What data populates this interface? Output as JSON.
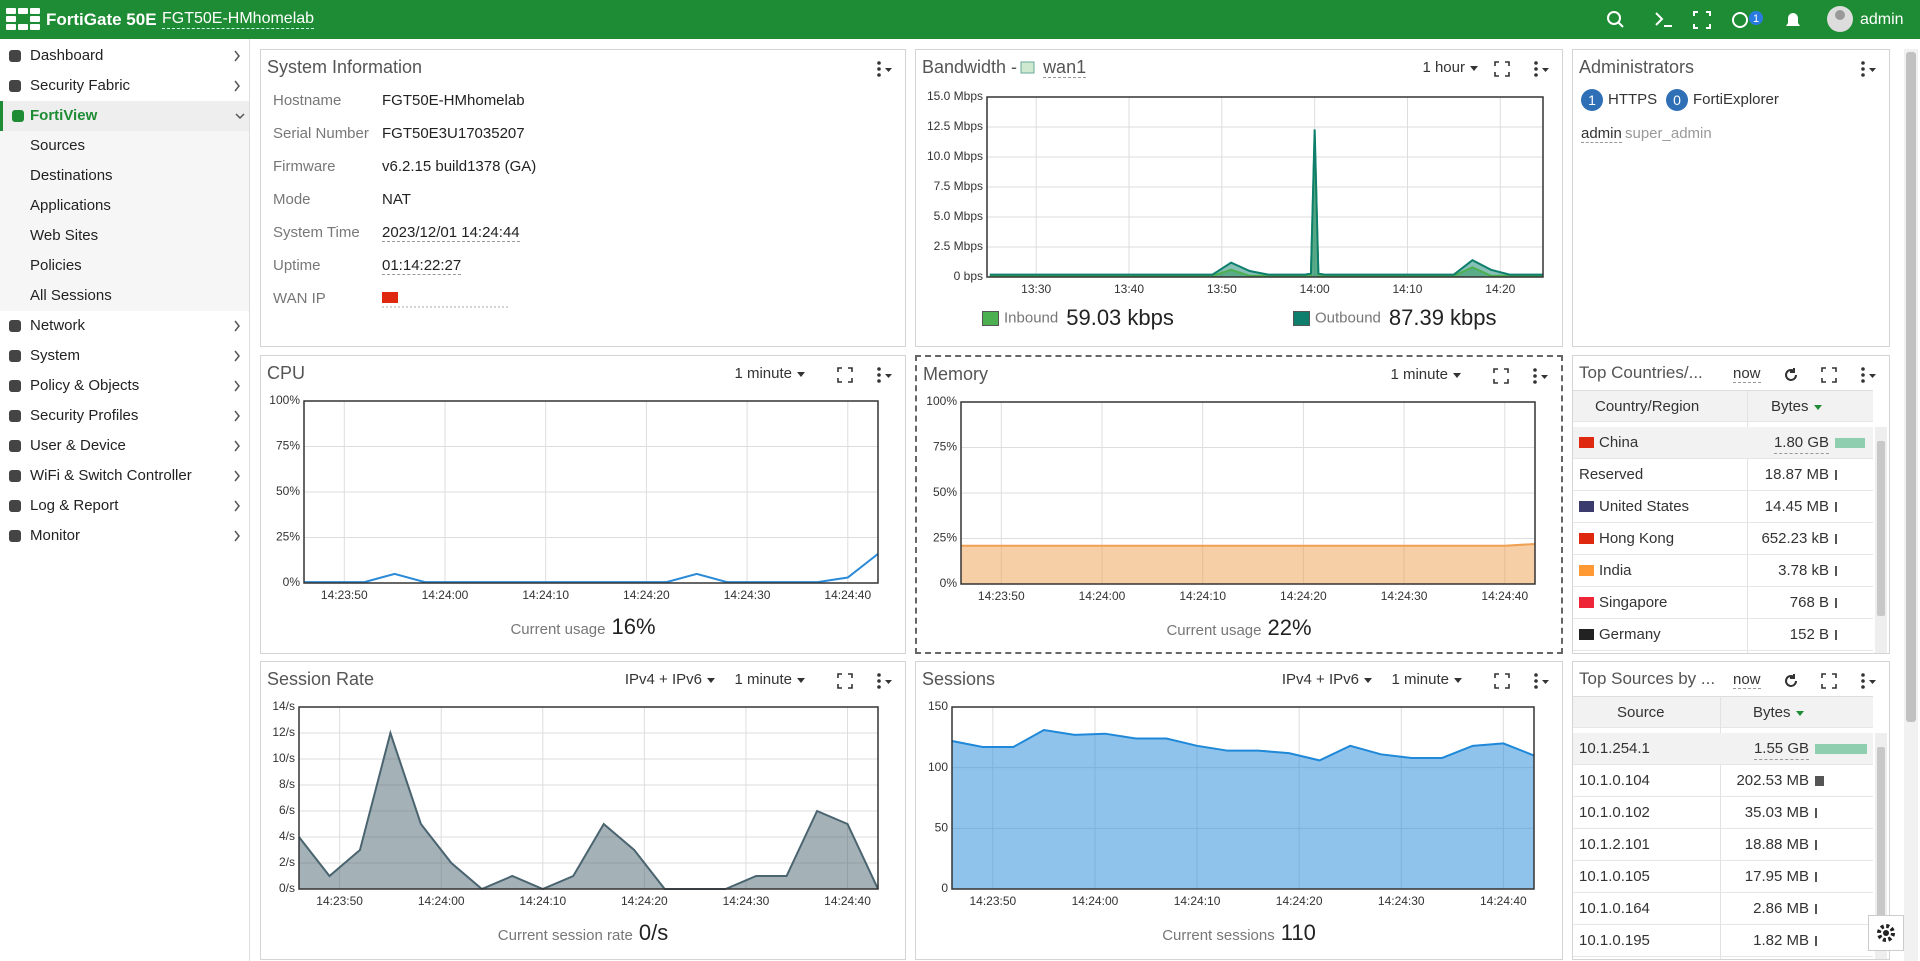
{
  "header": {
    "brand": "FortiGate 50E",
    "hostname": "FGT50E-HMhomelab",
    "help_count": 1,
    "user": "admin"
  },
  "sidebar": {
    "items": [
      {
        "label": "Dashboard"
      },
      {
        "label": "Security Fabric"
      },
      {
        "label": "FortiView",
        "active": true,
        "children": [
          "Sources",
          "Destinations",
          "Applications",
          "Web Sites",
          "Policies",
          "All Sessions"
        ]
      },
      {
        "label": "Network"
      },
      {
        "label": "System"
      },
      {
        "label": "Policy & Objects"
      },
      {
        "label": "Security Profiles"
      },
      {
        "label": "User & Device"
      },
      {
        "label": "WiFi & Switch Controller"
      },
      {
        "label": "Log & Report"
      },
      {
        "label": "Monitor"
      }
    ]
  },
  "system_information": {
    "title": "System Information",
    "rows": [
      {
        "label": "Hostname",
        "value": "FGT50E-HMhomelab"
      },
      {
        "label": "Serial Number",
        "value": "FGT50E3U17035207"
      },
      {
        "label": "Firmware",
        "value": "v6.2.15 build1378 (GA)"
      },
      {
        "label": "Mode",
        "value": "NAT"
      },
      {
        "label": "System Time",
        "value": "2023/12/01 14:24:44"
      },
      {
        "label": "Uptime",
        "value": "01:14:22:27"
      },
      {
        "label": "WAN IP"
      }
    ]
  },
  "bandwidth": {
    "title": "Bandwidth -",
    "interface": "wan1",
    "period": "1 hour",
    "chart_data": {
      "type": "area",
      "x": [
        805,
        807,
        809,
        811,
        813,
        815,
        817,
        819,
        821,
        823,
        825,
        827,
        829,
        831,
        833,
        835,
        837,
        839,
        839.6,
        840,
        840.4,
        841,
        843,
        845,
        847,
        849,
        851,
        853,
        855,
        857,
        859,
        861,
        863,
        864.6
      ],
      "series": [
        {
          "name": "Inbound",
          "color": "#4caf50",
          "current": "59.03 kbps",
          "values": [
            0.1,
            0.1,
            0.1,
            0.1,
            0.1,
            0.1,
            0.1,
            0.1,
            0.1,
            0.1,
            0.1,
            0.1,
            0.1,
            0.6,
            0.1,
            0.1,
            0.1,
            0.1,
            0.1,
            11.8,
            0.1,
            0.1,
            0.1,
            0.1,
            0.1,
            0.1,
            0.1,
            0.1,
            0.1,
            0.8,
            0.1,
            0.1,
            0.1,
            0.1
          ]
        },
        {
          "name": "Outbound",
          "color": "#0e7f6d",
          "current": "87.39 kbps",
          "values": [
            0.2,
            0.2,
            0.2,
            0.2,
            0.2,
            0.2,
            0.2,
            0.2,
            0.2,
            0.2,
            0.2,
            0.2,
            0.2,
            1.2,
            0.5,
            0.2,
            0.2,
            0.2,
            0.3,
            12.3,
            0.3,
            0.2,
            0.2,
            0.2,
            0.2,
            0.2,
            0.2,
            0.2,
            0.2,
            1.4,
            0.6,
            0.2,
            0.2,
            0.2
          ]
        }
      ],
      "xlim": [
        804.7,
        864.6
      ],
      "xticks": [
        {
          "value": 810,
          "label": "13:30"
        },
        {
          "value": 820,
          "label": "13:40"
        },
        {
          "value": 830,
          "label": "13:50"
        },
        {
          "value": 840,
          "label": "14:00"
        },
        {
          "value": 850,
          "label": "14:10"
        },
        {
          "value": 860,
          "label": "14:20"
        }
      ],
      "ylim": [
        0,
        15
      ],
      "yticks": [
        {
          "value": 0,
          "label": "0 bps"
        },
        {
          "value": 2.5,
          "label": "2.5 Mbps"
        },
        {
          "value": 5,
          "label": "5.0 Mbps"
        },
        {
          "value": 7.5,
          "label": "7.5 Mbps"
        },
        {
          "value": 10,
          "label": "10.0 Mbps"
        },
        {
          "value": 12.5,
          "label": "12.5 Mbps"
        },
        {
          "value": 15,
          "label": "15.0 Mbps"
        }
      ],
      "grid": true
    }
  },
  "administrators": {
    "title": "Administrators",
    "sessions": [
      {
        "count": 1,
        "label": "HTTPS"
      },
      {
        "count": 0,
        "label": "FortiExplorer"
      }
    ],
    "users": [
      {
        "name": "admin",
        "profile": "super_admin"
      }
    ]
  },
  "cpu": {
    "title": "CPU",
    "period": "1 minute",
    "current_label": "Current usage",
    "current_value": "16%",
    "chart_data": {
      "type": "line",
      "x": [
        51826,
        51829,
        51832,
        51835,
        51838,
        51841,
        51844,
        51847,
        51850,
        51853,
        51856,
        51859,
        51862,
        51865,
        51868,
        51871,
        51874,
        51877,
        51880,
        51883
      ],
      "series": [
        {
          "name": "CPU",
          "color": "#2a8ad8",
          "values": [
            0.5,
            0.5,
            0.5,
            5,
            0.5,
            0.5,
            0.5,
            0.5,
            0.5,
            0.5,
            0.5,
            0.5,
            0.5,
            5,
            0.5,
            0.5,
            0.5,
            0.5,
            3,
            16
          ]
        }
      ],
      "xlim": [
        51826,
        51883
      ],
      "xticks": [
        {
          "value": 51830,
          "label": "14:23:50"
        },
        {
          "value": 51840,
          "label": "14:24:00"
        },
        {
          "value": 51850,
          "label": "14:24:10"
        },
        {
          "value": 51860,
          "label": "14:24:20"
        },
        {
          "value": 51870,
          "label": "14:24:30"
        },
        {
          "value": 51880,
          "label": "14:24:40"
        }
      ],
      "ylim": [
        0,
        100
      ],
      "yticks": [
        {
          "value": 0,
          "label": "0%"
        },
        {
          "value": 25,
          "label": "25%"
        },
        {
          "value": 50,
          "label": "50%"
        },
        {
          "value": 75,
          "label": "75%"
        },
        {
          "value": 100,
          "label": "100%"
        }
      ],
      "grid": true
    }
  },
  "memory": {
    "title": "Memory",
    "period": "1 minute",
    "current_label": "Current usage",
    "current_value": "22%",
    "chart_data": {
      "type": "area",
      "x": [
        51826,
        51829,
        51832,
        51835,
        51838,
        51841,
        51844,
        51847,
        51850,
        51853,
        51856,
        51859,
        51862,
        51865,
        51868,
        51871,
        51874,
        51877,
        51880,
        51883
      ],
      "series": [
        {
          "name": "Memory",
          "color": "#f0a050",
          "values": [
            21,
            21,
            21,
            21,
            21,
            21,
            21,
            21,
            21,
            21,
            21,
            21,
            21,
            21,
            21,
            21,
            21,
            21,
            21,
            22
          ]
        }
      ],
      "xlim": [
        51826,
        51883
      ],
      "xticks": [
        {
          "value": 51830,
          "label": "14:23:50"
        },
        {
          "value": 51840,
          "label": "14:24:00"
        },
        {
          "value": 51850,
          "label": "14:24:10"
        },
        {
          "value": 51860,
          "label": "14:24:20"
        },
        {
          "value": 51870,
          "label": "14:24:30"
        },
        {
          "value": 51880,
          "label": "14:24:40"
        }
      ],
      "ylim": [
        0,
        100
      ],
      "yticks": [
        {
          "value": 0,
          "label": "0%"
        },
        {
          "value": 25,
          "label": "25%"
        },
        {
          "value": 50,
          "label": "50%"
        },
        {
          "value": 75,
          "label": "75%"
        },
        {
          "value": 100,
          "label": "100%"
        }
      ],
      "grid": true
    }
  },
  "top_countries": {
    "title": "Top Countries/...",
    "time": "now",
    "columns": [
      "Country/Region",
      "Bytes"
    ],
    "rows": [
      [
        "China",
        "1.80 GB"
      ],
      [
        "Reserved",
        "18.87 MB"
      ],
      [
        "United States",
        "14.45 MB"
      ],
      [
        "Hong Kong",
        "652.23 kB"
      ],
      [
        "India",
        "3.78 kB"
      ],
      [
        "Singapore",
        "768 B"
      ],
      [
        "Germany",
        "152 B"
      ]
    ]
  },
  "session_rate": {
    "title": "Session Rate",
    "protocol": "IPv4 + IPv6",
    "period": "1 minute",
    "current_label": "Current session rate",
    "current_value": "0/s",
    "chart_data": {
      "type": "area",
      "x": [
        51826,
        51829,
        51832,
        51835,
        51838,
        51841,
        51844,
        51847,
        51850,
        51853,
        51856,
        51859,
        51862,
        51865,
        51868,
        51871,
        51874,
        51877,
        51880,
        51883
      ],
      "series": [
        {
          "name": "Session Rate",
          "color": "#4a6470",
          "values": [
            4,
            1,
            3,
            12,
            5,
            2,
            0,
            1,
            0,
            1,
            5,
            3,
            0,
            0,
            0,
            1,
            1,
            6,
            5,
            0
          ]
        }
      ],
      "xlim": [
        51826,
        51883
      ],
      "xticks": [
        {
          "value": 51830,
          "label": "14:23:50"
        },
        {
          "value": 51840,
          "label": "14:24:00"
        },
        {
          "value": 51850,
          "label": "14:24:10"
        },
        {
          "value": 51860,
          "label": "14:24:20"
        },
        {
          "value": 51870,
          "label": "14:24:30"
        },
        {
          "value": 51880,
          "label": "14:24:40"
        }
      ],
      "ylim": [
        0,
        14
      ],
      "yticks": [
        {
          "value": 0,
          "label": "0/s"
        },
        {
          "value": 2,
          "label": "2/s"
        },
        {
          "value": 4,
          "label": "4/s"
        },
        {
          "value": 6,
          "label": "6/s"
        },
        {
          "value": 8,
          "label": "8/s"
        },
        {
          "value": 10,
          "label": "10/s"
        },
        {
          "value": 12,
          "label": "12/s"
        },
        {
          "value": 14,
          "label": "14/s"
        }
      ],
      "grid": true
    }
  },
  "sessions": {
    "title": "Sessions",
    "protocol": "IPv4 + IPv6",
    "period": "1 minute",
    "current_label": "Current sessions",
    "current_value": "110",
    "chart_data": {
      "type": "area",
      "x": [
        51826,
        51829,
        51832,
        51835,
        51838,
        51841,
        51844,
        51847,
        51850,
        51853,
        51856,
        51859,
        51862,
        51865,
        51868,
        51871,
        51874,
        51877,
        51880,
        51883
      ],
      "series": [
        {
          "name": "Sessions",
          "color": "#1f88d8",
          "values": [
            122,
            117,
            117,
            131,
            127,
            128,
            124,
            124,
            118,
            114,
            114,
            112,
            106,
            118,
            111,
            108,
            108,
            118,
            120,
            110
          ]
        }
      ],
      "xlim": [
        51826,
        51883
      ],
      "xticks": [
        {
          "value": 51830,
          "label": "14:23:50"
        },
        {
          "value": 51840,
          "label": "14:24:00"
        },
        {
          "value": 51850,
          "label": "14:24:10"
        },
        {
          "value": 51860,
          "label": "14:24:20"
        },
        {
          "value": 51870,
          "label": "14:24:30"
        },
        {
          "value": 51880,
          "label": "14:24:40"
        }
      ],
      "ylim": [
        0,
        150
      ],
      "yticks": [
        0,
        50,
        100,
        150
      ],
      "grid": true
    }
  },
  "top_sources": {
    "title": "Top Sources by ...",
    "time": "now",
    "columns": [
      "Source",
      "Bytes"
    ],
    "rows": [
      [
        "10.1.254.1",
        "1.55 GB"
      ],
      [
        "10.1.0.104",
        "202.53 MB"
      ],
      [
        "10.1.0.102",
        "35.03 MB"
      ],
      [
        "10.1.2.101",
        "18.88 MB"
      ],
      [
        "10.1.0.105",
        "17.95 MB"
      ],
      [
        "10.1.0.164",
        "2.86 MB"
      ],
      [
        "10.1.0.195",
        "1.82 MB"
      ]
    ]
  }
}
